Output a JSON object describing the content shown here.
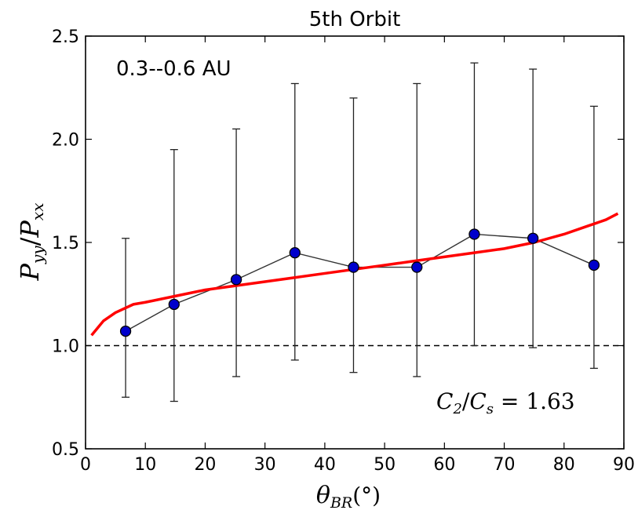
{
  "chart_data": {
    "type": "scatter",
    "title": "5th Orbit",
    "xlabel": "θ_BR(°)",
    "ylabel": "P_yy/P_xx",
    "xlim": [
      0,
      90
    ],
    "ylim": [
      0.5,
      2.5
    ],
    "x_ticks": [
      "0",
      "10",
      "20",
      "30",
      "40",
      "50",
      "60",
      "70",
      "80",
      "90"
    ],
    "y_ticks": [
      "0.5",
      "1.0",
      "1.5",
      "2.0",
      "2.5"
    ],
    "annotation_range": "0.3--0.6 AU",
    "annotation_ratio": "C_2/C_s = 1.63",
    "reference_line_y": 1.0,
    "series": [
      {
        "kind": "points-with-errorbars",
        "color": "#0000cc",
        "line_color": "#333333",
        "points": [
          {
            "x": 6.7,
            "y": 1.07,
            "lo": 0.75,
            "hi": 1.52
          },
          {
            "x": 14.8,
            "y": 1.2,
            "lo": 0.73,
            "hi": 1.95
          },
          {
            "x": 25.2,
            "y": 1.32,
            "lo": 0.85,
            "hi": 2.05
          },
          {
            "x": 35.0,
            "y": 1.45,
            "lo": 0.93,
            "hi": 2.27
          },
          {
            "x": 44.8,
            "y": 1.38,
            "lo": 0.87,
            "hi": 2.2
          },
          {
            "x": 55.4,
            "y": 1.38,
            "lo": 0.85,
            "hi": 2.27
          },
          {
            "x": 65.0,
            "y": 1.54,
            "lo": 1.0,
            "hi": 2.37
          },
          {
            "x": 74.8,
            "y": 1.52,
            "lo": 0.99,
            "hi": 2.34
          },
          {
            "x": 85.0,
            "y": 1.39,
            "lo": 0.89,
            "hi": 2.16
          }
        ]
      },
      {
        "kind": "model-curve",
        "color": "#ff0000",
        "x": [
          1,
          3,
          5,
          8,
          10,
          15,
          20,
          25,
          30,
          35,
          40,
          45,
          50,
          55,
          60,
          65,
          70,
          75,
          80,
          84,
          87,
          89
        ],
        "y": [
          1.05,
          1.12,
          1.16,
          1.2,
          1.21,
          1.24,
          1.27,
          1.29,
          1.31,
          1.33,
          1.35,
          1.37,
          1.39,
          1.41,
          1.43,
          1.45,
          1.47,
          1.5,
          1.54,
          1.58,
          1.61,
          1.64
        ]
      }
    ]
  }
}
